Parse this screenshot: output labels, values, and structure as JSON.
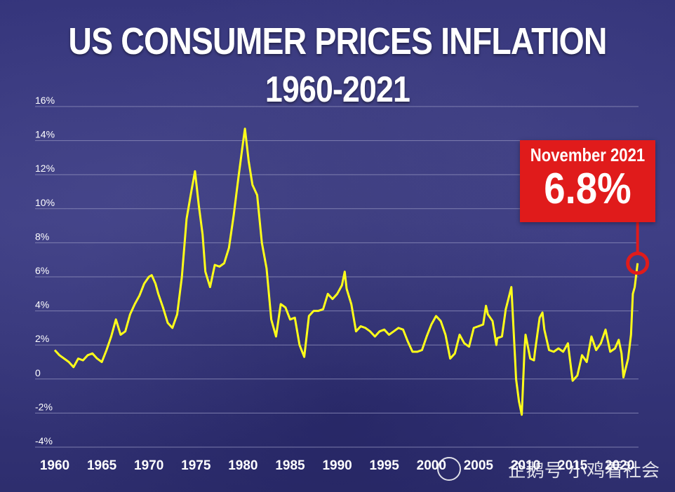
{
  "header": {
    "title": "US CONSUMER PRICES INFLATION",
    "subtitle": "1960-2021"
  },
  "callout": {
    "label": "November 2021",
    "value": "6.8%"
  },
  "watermark": "企鹅号 小鸡看社会",
  "colors": {
    "background": "#35357a",
    "line": "#ffff1a",
    "callout": "#e01b1b",
    "gridline": "#8a8ab8"
  },
  "chart_data": {
    "type": "line",
    "title": "US CONSUMER PRICES INFLATION",
    "subtitle": "1960-2021",
    "xlabel": "",
    "ylabel": "",
    "xlim": [
      1960,
      2022
    ],
    "ylim": [
      -4,
      16
    ],
    "grid": true,
    "y_ticks": [
      "16%",
      "14%",
      "12%",
      "10%",
      "8%",
      "6%",
      "4%",
      "2%",
      "0",
      "-2%",
      "-4%"
    ],
    "y_tick_values": [
      16,
      14,
      12,
      10,
      8,
      6,
      4,
      2,
      0,
      -2,
      -4
    ],
    "x_ticks": [
      "1960",
      "1965",
      "1970",
      "1975",
      "1980",
      "1985",
      "1990",
      "1995",
      "2000",
      "2005",
      "2010",
      "2015",
      "2020"
    ],
    "x_tick_values": [
      1960,
      1965,
      1970,
      1975,
      1980,
      1985,
      1990,
      1995,
      2000,
      2005,
      2010,
      2015,
      2020
    ],
    "series": [
      {
        "values": [
          [
            1960.0,
            1.7
          ],
          [
            1960.5,
            1.4
          ],
          [
            1961.0,
            1.2
          ],
          [
            1961.5,
            1.0
          ],
          [
            1962.0,
            0.7
          ],
          [
            1962.5,
            1.2
          ],
          [
            1963.0,
            1.1
          ],
          [
            1963.5,
            1.4
          ],
          [
            1964.0,
            1.5
          ],
          [
            1964.5,
            1.2
          ],
          [
            1965.0,
            1.0
          ],
          [
            1965.5,
            1.7
          ],
          [
            1966.0,
            2.5
          ],
          [
            1966.5,
            3.5
          ],
          [
            1967.0,
            2.6
          ],
          [
            1967.5,
            2.8
          ],
          [
            1968.0,
            3.8
          ],
          [
            1968.5,
            4.4
          ],
          [
            1969.0,
            4.9
          ],
          [
            1969.5,
            5.6
          ],
          [
            1970.0,
            6.0
          ],
          [
            1970.3,
            6.1
          ],
          [
            1970.7,
            5.6
          ],
          [
            1971.0,
            5.0
          ],
          [
            1971.5,
            4.2
          ],
          [
            1972.0,
            3.3
          ],
          [
            1972.5,
            3.0
          ],
          [
            1973.0,
            3.8
          ],
          [
            1973.5,
            6.0
          ],
          [
            1974.0,
            9.4
          ],
          [
            1974.5,
            11.0
          ],
          [
            1974.9,
            12.2
          ],
          [
            1975.3,
            10.2
          ],
          [
            1975.7,
            8.5
          ],
          [
            1976.0,
            6.3
          ],
          [
            1976.5,
            5.4
          ],
          [
            1977.0,
            6.7
          ],
          [
            1977.5,
            6.6
          ],
          [
            1978.0,
            6.8
          ],
          [
            1978.5,
            7.7
          ],
          [
            1979.0,
            9.6
          ],
          [
            1979.5,
            11.8
          ],
          [
            1980.0,
            13.9
          ],
          [
            1980.2,
            14.7
          ],
          [
            1980.6,
            12.8
          ],
          [
            1981.0,
            11.4
          ],
          [
            1981.5,
            10.8
          ],
          [
            1982.0,
            8.0
          ],
          [
            1982.5,
            6.5
          ],
          [
            1983.0,
            3.5
          ],
          [
            1983.5,
            2.5
          ],
          [
            1984.0,
            4.4
          ],
          [
            1984.5,
            4.2
          ],
          [
            1985.0,
            3.5
          ],
          [
            1985.5,
            3.6
          ],
          [
            1986.0,
            2.0
          ],
          [
            1986.5,
            1.3
          ],
          [
            1987.0,
            3.7
          ],
          [
            1987.5,
            4.0
          ],
          [
            1988.0,
            4.0
          ],
          [
            1988.5,
            4.1
          ],
          [
            1989.0,
            5.0
          ],
          [
            1989.5,
            4.7
          ],
          [
            1990.0,
            5.0
          ],
          [
            1990.5,
            5.5
          ],
          [
            1990.8,
            6.3
          ],
          [
            1991.0,
            5.3
          ],
          [
            1991.5,
            4.4
          ],
          [
            1992.0,
            2.8
          ],
          [
            1992.5,
            3.1
          ],
          [
            1993.0,
            3.0
          ],
          [
            1993.5,
            2.8
          ],
          [
            1994.0,
            2.5
          ],
          [
            1994.5,
            2.8
          ],
          [
            1995.0,
            2.9
          ],
          [
            1995.5,
            2.6
          ],
          [
            1996.0,
            2.8
          ],
          [
            1996.5,
            3.0
          ],
          [
            1997.0,
            2.9
          ],
          [
            1997.5,
            2.2
          ],
          [
            1998.0,
            1.6
          ],
          [
            1998.5,
            1.6
          ],
          [
            1999.0,
            1.7
          ],
          [
            1999.5,
            2.5
          ],
          [
            2000.0,
            3.2
          ],
          [
            2000.5,
            3.7
          ],
          [
            2001.0,
            3.4
          ],
          [
            2001.5,
            2.6
          ],
          [
            2002.0,
            1.2
          ],
          [
            2002.5,
            1.5
          ],
          [
            2003.0,
            2.6
          ],
          [
            2003.5,
            2.1
          ],
          [
            2004.0,
            1.9
          ],
          [
            2004.5,
            3.0
          ],
          [
            2005.0,
            3.1
          ],
          [
            2005.5,
            3.2
          ],
          [
            2005.8,
            4.3
          ],
          [
            2006.0,
            3.8
          ],
          [
            2006.5,
            3.4
          ],
          [
            2006.9,
            2.0
          ],
          [
            2007.0,
            2.4
          ],
          [
            2007.5,
            2.5
          ],
          [
            2007.9,
            4.1
          ],
          [
            2008.0,
            4.3
          ],
          [
            2008.5,
            5.4
          ],
          [
            2008.9,
            1.1
          ],
          [
            2009.0,
            0.0
          ],
          [
            2009.3,
            -1.3
          ],
          [
            2009.6,
            -2.1
          ],
          [
            2009.9,
            1.8
          ],
          [
            2010.0,
            2.6
          ],
          [
            2010.5,
            1.2
          ],
          [
            2010.9,
            1.1
          ],
          [
            2011.0,
            1.6
          ],
          [
            2011.5,
            3.6
          ],
          [
            2011.8,
            3.9
          ],
          [
            2012.0,
            2.9
          ],
          [
            2012.5,
            1.7
          ],
          [
            2013.0,
            1.6
          ],
          [
            2013.5,
            1.8
          ],
          [
            2014.0,
            1.6
          ],
          [
            2014.5,
            2.1
          ],
          [
            2015.0,
            -0.1
          ],
          [
            2015.5,
            0.2
          ],
          [
            2016.0,
            1.4
          ],
          [
            2016.5,
            1.0
          ],
          [
            2017.0,
            2.5
          ],
          [
            2017.5,
            1.7
          ],
          [
            2018.0,
            2.1
          ],
          [
            2018.5,
            2.9
          ],
          [
            2019.0,
            1.6
          ],
          [
            2019.5,
            1.8
          ],
          [
            2019.9,
            2.3
          ],
          [
            2020.2,
            1.5
          ],
          [
            2020.4,
            0.1
          ],
          [
            2020.9,
            1.2
          ],
          [
            2021.2,
            2.6
          ],
          [
            2021.4,
            5.0
          ],
          [
            2021.6,
            5.4
          ],
          [
            2021.9,
            6.8
          ]
        ]
      }
    ],
    "annotations": [
      {
        "label": "November 2021",
        "value": "6.8%",
        "x": 2021.9,
        "y": 6.8
      }
    ]
  }
}
